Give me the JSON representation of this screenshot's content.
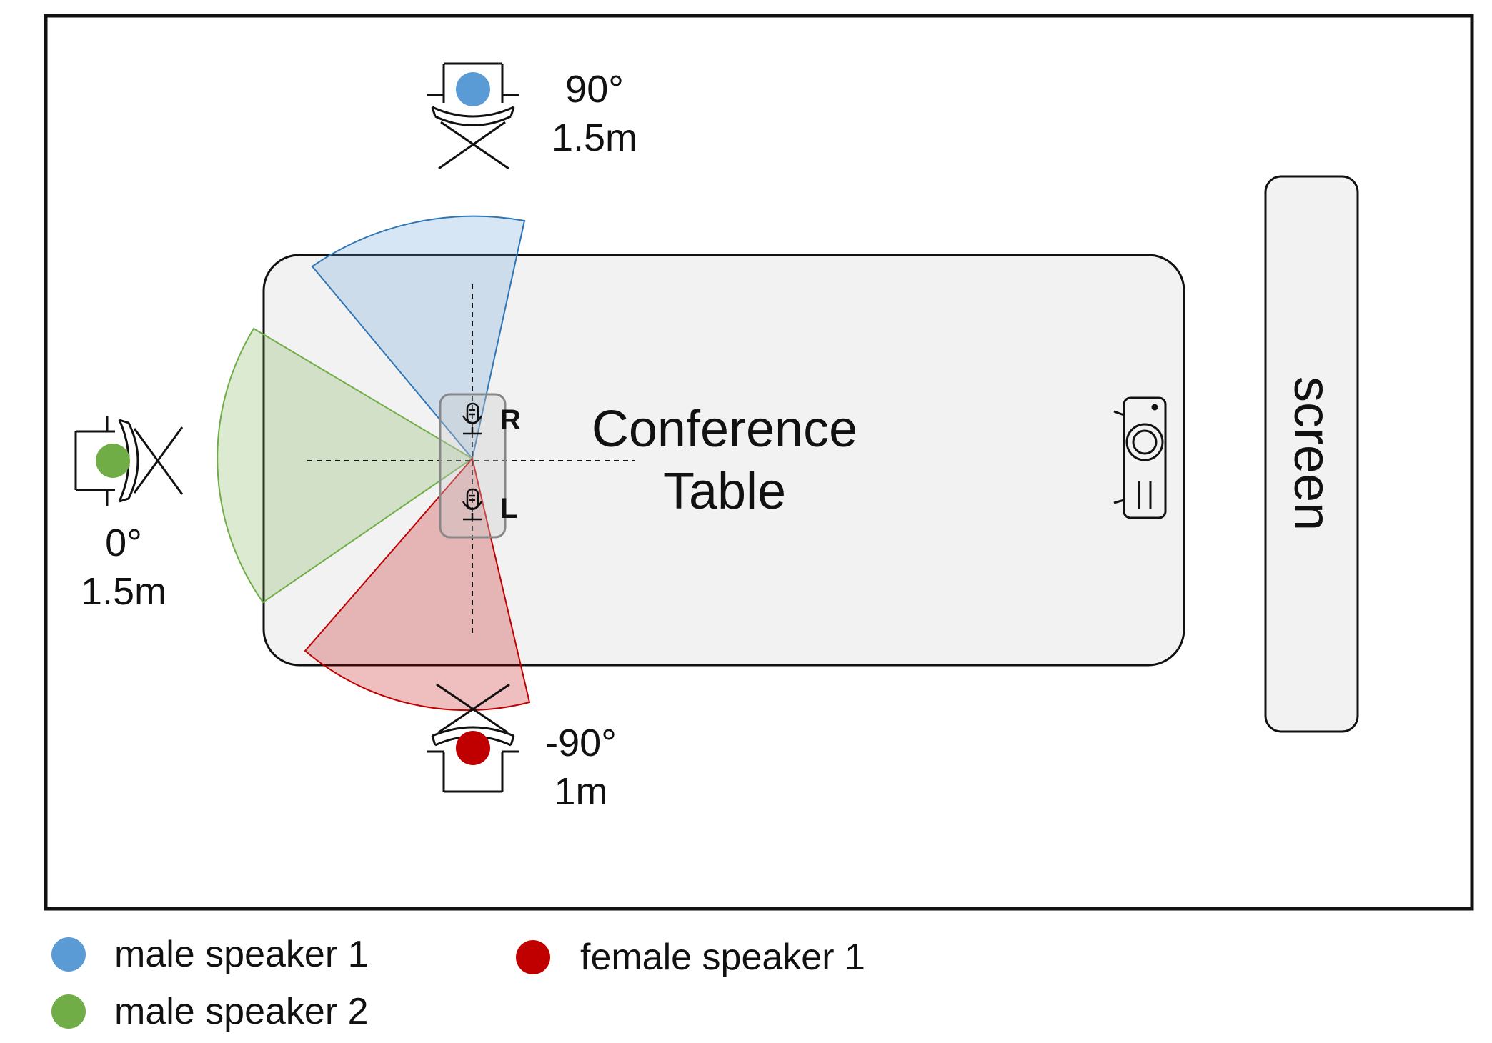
{
  "table_label": {
    "line1": "Conference",
    "line2": "Table"
  },
  "screen_label": "screen",
  "mic_labels": {
    "right": "R",
    "left": "L"
  },
  "speakers": [
    {
      "id": "blue",
      "angle": "90°",
      "distance": "1.5m",
      "color": "#5b9bd5"
    },
    {
      "id": "green",
      "angle": "0°",
      "distance": "1.5m",
      "color": "#70ad47"
    },
    {
      "id": "red",
      "angle": "-90°",
      "distance": "1m",
      "color": "#c00000"
    }
  ],
  "legend": [
    {
      "label": "male speaker 1",
      "color": "#5b9bd5"
    },
    {
      "label": "male speaker 2",
      "color": "#70ad47"
    },
    {
      "label": "female speaker 1",
      "color": "#c00000"
    }
  ],
  "icons": [
    "chair-icon",
    "microphone-icon",
    "projector-icon"
  ]
}
